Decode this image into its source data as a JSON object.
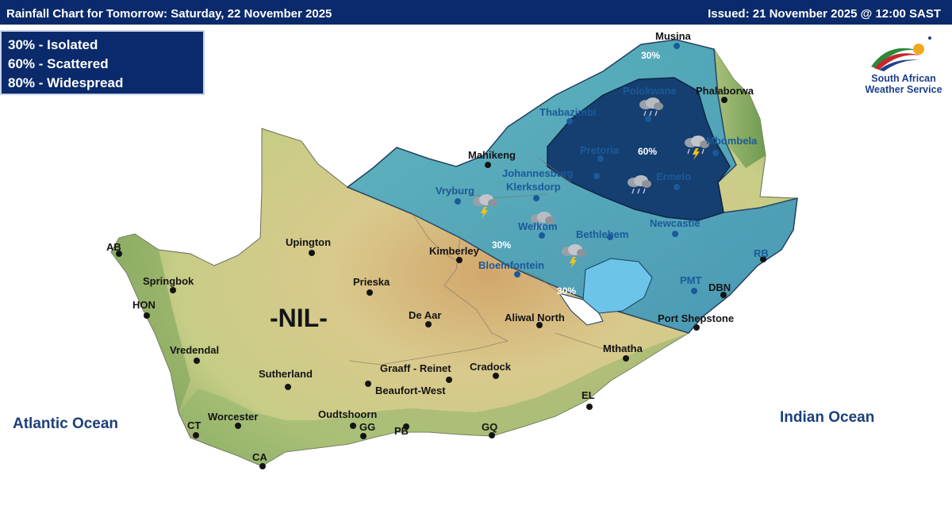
{
  "header": {
    "title": "Rainfall Chart for Tomorrow: Saturday, 22 November 2025",
    "issued": "Issued: 21 November 2025 @ 12:00 SAST"
  },
  "legend": {
    "items": [
      "30% - Isolated",
      "60% - Scattered",
      "80% - Widespread"
    ]
  },
  "logo": {
    "line1": "South African",
    "line2": "Weather Service"
  },
  "oceans": {
    "atlantic": "Atlantic Ocean",
    "indian": "Indian Ocean"
  },
  "map": {
    "nil_label": "-NIL-",
    "zones": {
      "pct_north": "30%",
      "pct_core": "60%",
      "pct_mid": "30%",
      "pct_south": "30%"
    },
    "cities": {
      "musina": "Musina",
      "polokwane": "Polokwane",
      "phalaborwa": "Phalaborwa",
      "thabazimbi": "Thabazimbi",
      "mahikeng": "Mahikeng",
      "pretoria": "Pretoria",
      "mbombela": "Mbombela",
      "johannesburg": "Johannesburg",
      "klerksdorp": "Klerksdorp",
      "vryburg": "Vryburg",
      "ermelo": "Ermelo",
      "welkom": "Welkom",
      "bethlehem": "Bethlehem",
      "newcastle": "Newcastle",
      "ab": "AB",
      "upington": "Upington",
      "kimberley": "Kimberley",
      "bloemfontein": "Bloemfontein",
      "rb": "RB",
      "springbok": "Springbok",
      "prieska": "Prieska",
      "pmt": "PMT",
      "dbn": "DBN",
      "hon": "HON",
      "de_aar": "De Aar",
      "aliwal_north": "Aliwal North",
      "port_shepstone": "Port Shepstone",
      "vredendal": "Vredendal",
      "mthatha": "Mthatha",
      "sutherland": "Sutherland",
      "graaff_reinet": "Graaff - Reinet",
      "cradock": "Cradock",
      "beaufort_west": "Beaufort-West",
      "el": "EL",
      "worcester": "Worcester",
      "oudtshoorn": "Oudtshoorn",
      "ct": "CT",
      "gg": "GG",
      "pb": "PB",
      "gq": "GQ",
      "ca": "CA"
    }
  },
  "colors": {
    "header_bg": "#0b2a6b",
    "zone_30": "#4aa7c0",
    "zone_60": "#123a6e",
    "lesotho": "#6cc4e8",
    "land_light": "#d8d99a",
    "land_green": "#8fb46a",
    "land_brown": "#c49a62"
  },
  "icons": [
    "thundercloud-icon",
    "rain-cloud-icon",
    "swe-logo-icon"
  ]
}
